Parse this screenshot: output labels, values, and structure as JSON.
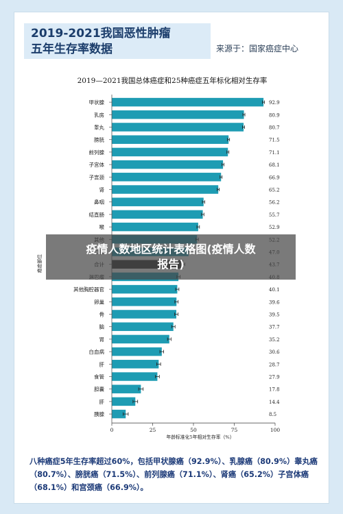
{
  "header": {
    "title_line1": "2019-2021我国恶性肿瘤",
    "title_line2": "五年生存率数据",
    "source": "来源于：国家癌症中心"
  },
  "chart_data": {
    "type": "bar",
    "orientation": "horizontal",
    "title": "2019—2021我国总体癌症和25种癌症五年标化相对生存率",
    "xlabel": "年龄标准化5年相对生存率（%）",
    "ylabel": "癌症部位",
    "xlim": [
      0,
      100
    ],
    "xticks": [
      0,
      25,
      50,
      75,
      100
    ],
    "categories": [
      "甲状腺",
      "乳房",
      "睾丸",
      "膀胱",
      "前列腺",
      "子宫体",
      "子宫颈",
      "肾",
      "鼻咽",
      "结直肠",
      "喉",
      "其他",
      "口腔",
      "合计",
      "淋巴瘤",
      "其他胸腔器官",
      "卵巢",
      "骨",
      "脑",
      "胃",
      "白血病",
      "肝",
      "食管",
      "胆囊",
      "肝",
      "胰腺"
    ],
    "values": [
      92.9,
      80.9,
      80.7,
      71.5,
      71.1,
      68.1,
      66.9,
      65.2,
      56.2,
      55.7,
      52.9,
      52.2,
      47.0,
      43.7,
      40.8,
      40.1,
      39.6,
      39.5,
      37.7,
      35.2,
      30.6,
      28.7,
      27.9,
      17.8,
      14.4,
      8.5
    ],
    "value_labels": [
      "92.9",
      "80.9",
      "80.7",
      "71.5",
      "71.1",
      "68.1",
      "66.9",
      "65.2",
      "56.2",
      "55.7",
      "52.9",
      "52.2",
      "47.0",
      "43.7",
      "40.8",
      "40.1",
      "39.6",
      "39.5",
      "37.7",
      "35.2",
      "30.6",
      "28.7",
      "27.9",
      "17.8",
      "14.4",
      "8.5"
    ],
    "grid": false,
    "colors": {
      "bar": "#1e9cb3",
      "overall_bar": "#2c2c2c",
      "error_bar": "#222222"
    }
  },
  "footnote": "八种癌症5年生存率超过60%，包括甲状腺癌（92.9%）、乳腺癌（80.9%）睾丸癌（80.7%）、膀胱癌（71.5%）、前列腺癌（71.1%）、肾癌（65.2%）子宫体癌（68.1%）和宫颈癌（66.9%）。",
  "watermark": {
    "line1": "疫情人数地区统计表格图(疫情人数",
    "line2": "报告)"
  }
}
